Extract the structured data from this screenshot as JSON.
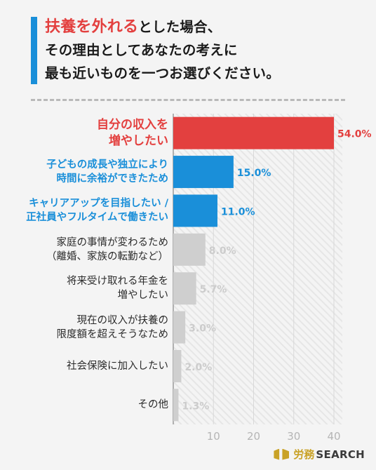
{
  "title": {
    "highlight": "扶養を外れる",
    "line1_rest": "とした場合、",
    "line2": "その理由としてあなたの考えに",
    "line3": "最も近いものを一つお選びください。"
  },
  "chart_data": {
    "type": "bar",
    "orientation": "horizontal",
    "categories": [
      [
        "自分の収入を",
        "増やしたい"
      ],
      [
        "子どもの成長や独立により",
        "時間に余裕ができたため"
      ],
      [
        "キャリアアップを目指したい /",
        "正社員やフルタイムで働きたい"
      ],
      [
        "家庭の事情が変わるため",
        "（離婚、家族の転勤など）"
      ],
      [
        "将来受け取れる年金を",
        "増やしたい"
      ],
      [
        "現在の収入が扶養の",
        "限度額を超えそうなため"
      ],
      [
        "社会保険に加入したい"
      ],
      [
        "その他"
      ]
    ],
    "values": [
      54.0,
      15.0,
      11.0,
      8.0,
      5.7,
      3.0,
      2.0,
      1.3
    ],
    "value_labels": [
      "54.0%",
      "15.0%",
      "11.0%",
      "8.0%",
      "5.7%",
      "3.0%",
      "2.0%",
      "1.3%"
    ],
    "bar_colors": [
      "#e3403f",
      "#1a8fd9",
      "#1a8fd9",
      "#cfcfcf",
      "#cfcfcf",
      "#cfcfcf",
      "#cfcfcf",
      "#cfcfcf"
    ],
    "label_colors": [
      "#e3403f",
      "#1a8fd9",
      "#1a8fd9",
      "#cccccc",
      "#cccccc",
      "#cccccc",
      "#cccccc",
      "#cccccc"
    ],
    "x_ticks": [
      10,
      20,
      30,
      40
    ],
    "xlim": [
      0,
      40
    ],
    "grid": true
  },
  "logo": {
    "ja": "労務",
    "en": "SEARCH"
  }
}
